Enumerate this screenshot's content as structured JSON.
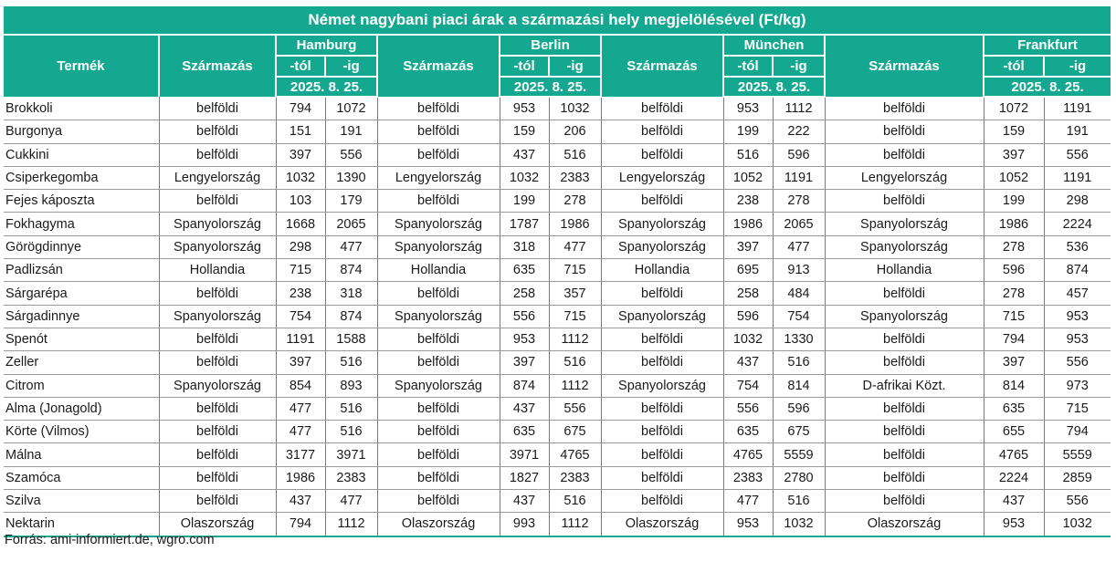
{
  "title": "Német nagybani piaci árak a származási hely megjelölésével (Ft/kg)",
  "headers": {
    "product": "Termék",
    "origin": "Származás",
    "from": "-tól",
    "to": "-ig",
    "date": "2025. 8. 25."
  },
  "cities": [
    "Hamburg",
    "Berlin",
    "München",
    "Frankfurt"
  ],
  "rows": [
    {
      "product": "Brokkoli",
      "cells": [
        [
          "belföldi",
          "794",
          "1072"
        ],
        [
          "belföldi",
          "953",
          "1032"
        ],
        [
          "belföldi",
          "953",
          "1112"
        ],
        [
          "belföldi",
          "1072",
          "1191"
        ]
      ]
    },
    {
      "product": "Burgonya",
      "cells": [
        [
          "belföldi",
          "151",
          "191"
        ],
        [
          "belföldi",
          "159",
          "206"
        ],
        [
          "belföldi",
          "199",
          "222"
        ],
        [
          "belföldi",
          "159",
          "191"
        ]
      ]
    },
    {
      "product": "Cukkini",
      "cells": [
        [
          "belföldi",
          "397",
          "556"
        ],
        [
          "belföldi",
          "437",
          "516"
        ],
        [
          "belföldi",
          "516",
          "596"
        ],
        [
          "belföldi",
          "397",
          "556"
        ]
      ]
    },
    {
      "product": "Csiperkegomba",
      "cells": [
        [
          "Lengyelország",
          "1032",
          "1390"
        ],
        [
          "Lengyelország",
          "1032",
          "2383"
        ],
        [
          "Lengyelország",
          "1052",
          "1191"
        ],
        [
          "Lengyelország",
          "1052",
          "1191"
        ]
      ]
    },
    {
      "product": "Fejes káposzta",
      "cells": [
        [
          "belföldi",
          "103",
          "179"
        ],
        [
          "belföldi",
          "199",
          "278"
        ],
        [
          "belföldi",
          "238",
          "278"
        ],
        [
          "belföldi",
          "199",
          "298"
        ]
      ]
    },
    {
      "product": "Fokhagyma",
      "cells": [
        [
          "Spanyolország",
          "1668",
          "2065"
        ],
        [
          "Spanyolország",
          "1787",
          "1986"
        ],
        [
          "Spanyolország",
          "1986",
          "2065"
        ],
        [
          "Spanyolország",
          "1986",
          "2224"
        ]
      ]
    },
    {
      "product": "Görögdinnye",
      "cells": [
        [
          "Spanyolország",
          "298",
          "477"
        ],
        [
          "Spanyolország",
          "318",
          "477"
        ],
        [
          "Spanyolország",
          "397",
          "477"
        ],
        [
          "Spanyolország",
          "278",
          "536"
        ]
      ]
    },
    {
      "product": "Padlizsán",
      "cells": [
        [
          "Hollandia",
          "715",
          "874"
        ],
        [
          "Hollandia",
          "635",
          "715"
        ],
        [
          "Hollandia",
          "695",
          "913"
        ],
        [
          "Hollandia",
          "596",
          "874"
        ]
      ]
    },
    {
      "product": "Sárgarépa",
      "cells": [
        [
          "belföldi",
          "238",
          "318"
        ],
        [
          "belföldi",
          "258",
          "357"
        ],
        [
          "belföldi",
          "258",
          "484"
        ],
        [
          "belföldi",
          "278",
          "457"
        ]
      ]
    },
    {
      "product": "Sárgadinnye",
      "cells": [
        [
          "Spanyolország",
          "754",
          "874"
        ],
        [
          "Spanyolország",
          "556",
          "715"
        ],
        [
          "Spanyolország",
          "596",
          "754"
        ],
        [
          "Spanyolország",
          "715",
          "953"
        ]
      ]
    },
    {
      "product": "Spenót",
      "cells": [
        [
          "belföldi",
          "1191",
          "1588"
        ],
        [
          "belföldi",
          "953",
          "1112"
        ],
        [
          "belföldi",
          "1032",
          "1330"
        ],
        [
          "belföldi",
          "794",
          "953"
        ]
      ]
    },
    {
      "product": "Zeller",
      "cells": [
        [
          "belföldi",
          "397",
          "516"
        ],
        [
          "belföldi",
          "397",
          "516"
        ],
        [
          "belföldi",
          "437",
          "516"
        ],
        [
          "belföldi",
          "397",
          "556"
        ]
      ]
    },
    {
      "product": "Citrom",
      "cells": [
        [
          "Spanyolország",
          "854",
          "893"
        ],
        [
          "Spanyolország",
          "874",
          "1112"
        ],
        [
          "Spanyolország",
          "754",
          "814"
        ],
        [
          "D-afrikai Közt.",
          "814",
          "973"
        ]
      ]
    },
    {
      "product": "Alma (Jonagold)",
      "cells": [
        [
          "belföldi",
          "477",
          "516"
        ],
        [
          "belföldi",
          "437",
          "556"
        ],
        [
          "belföldi",
          "556",
          "596"
        ],
        [
          "belföldi",
          "635",
          "715"
        ]
      ]
    },
    {
      "product": "Körte (Vilmos)",
      "cells": [
        [
          "belföldi",
          "477",
          "516"
        ],
        [
          "belföldi",
          "635",
          "675"
        ],
        [
          "belföldi",
          "635",
          "675"
        ],
        [
          "belföldi",
          "655",
          "794"
        ]
      ]
    },
    {
      "product": "Málna",
      "cells": [
        [
          "belföldi",
          "3177",
          "3971"
        ],
        [
          "belföldi",
          "3971",
          "4765"
        ],
        [
          "belföldi",
          "4765",
          "5559"
        ],
        [
          "belföldi",
          "4765",
          "5559"
        ]
      ]
    },
    {
      "product": "Szamóca",
      "cells": [
        [
          "belföldi",
          "1986",
          "2383"
        ],
        [
          "belföldi",
          "1827",
          "2383"
        ],
        [
          "belföldi",
          "2383",
          "2780"
        ],
        [
          "belföldi",
          "2224",
          "2859"
        ]
      ]
    },
    {
      "product": "Szilva",
      "cells": [
        [
          "belföldi",
          "437",
          "477"
        ],
        [
          "belföldi",
          "437",
          "516"
        ],
        [
          "belföldi",
          "477",
          "516"
        ],
        [
          "belföldi",
          "437",
          "556"
        ]
      ]
    },
    {
      "product": "Nektarin",
      "cells": [
        [
          "Olaszország",
          "794",
          "1112"
        ],
        [
          "Olaszország",
          "993",
          "1112"
        ],
        [
          "Olaszország",
          "953",
          "1032"
        ],
        [
          "Olaszország",
          "953",
          "1032"
        ]
      ]
    }
  ],
  "source": "Forrás: ami-informiert.de, wgro.com",
  "colors": {
    "header_bg": "#13a88f",
    "header_text": "#ffffff",
    "text": "#1a1a1a"
  }
}
